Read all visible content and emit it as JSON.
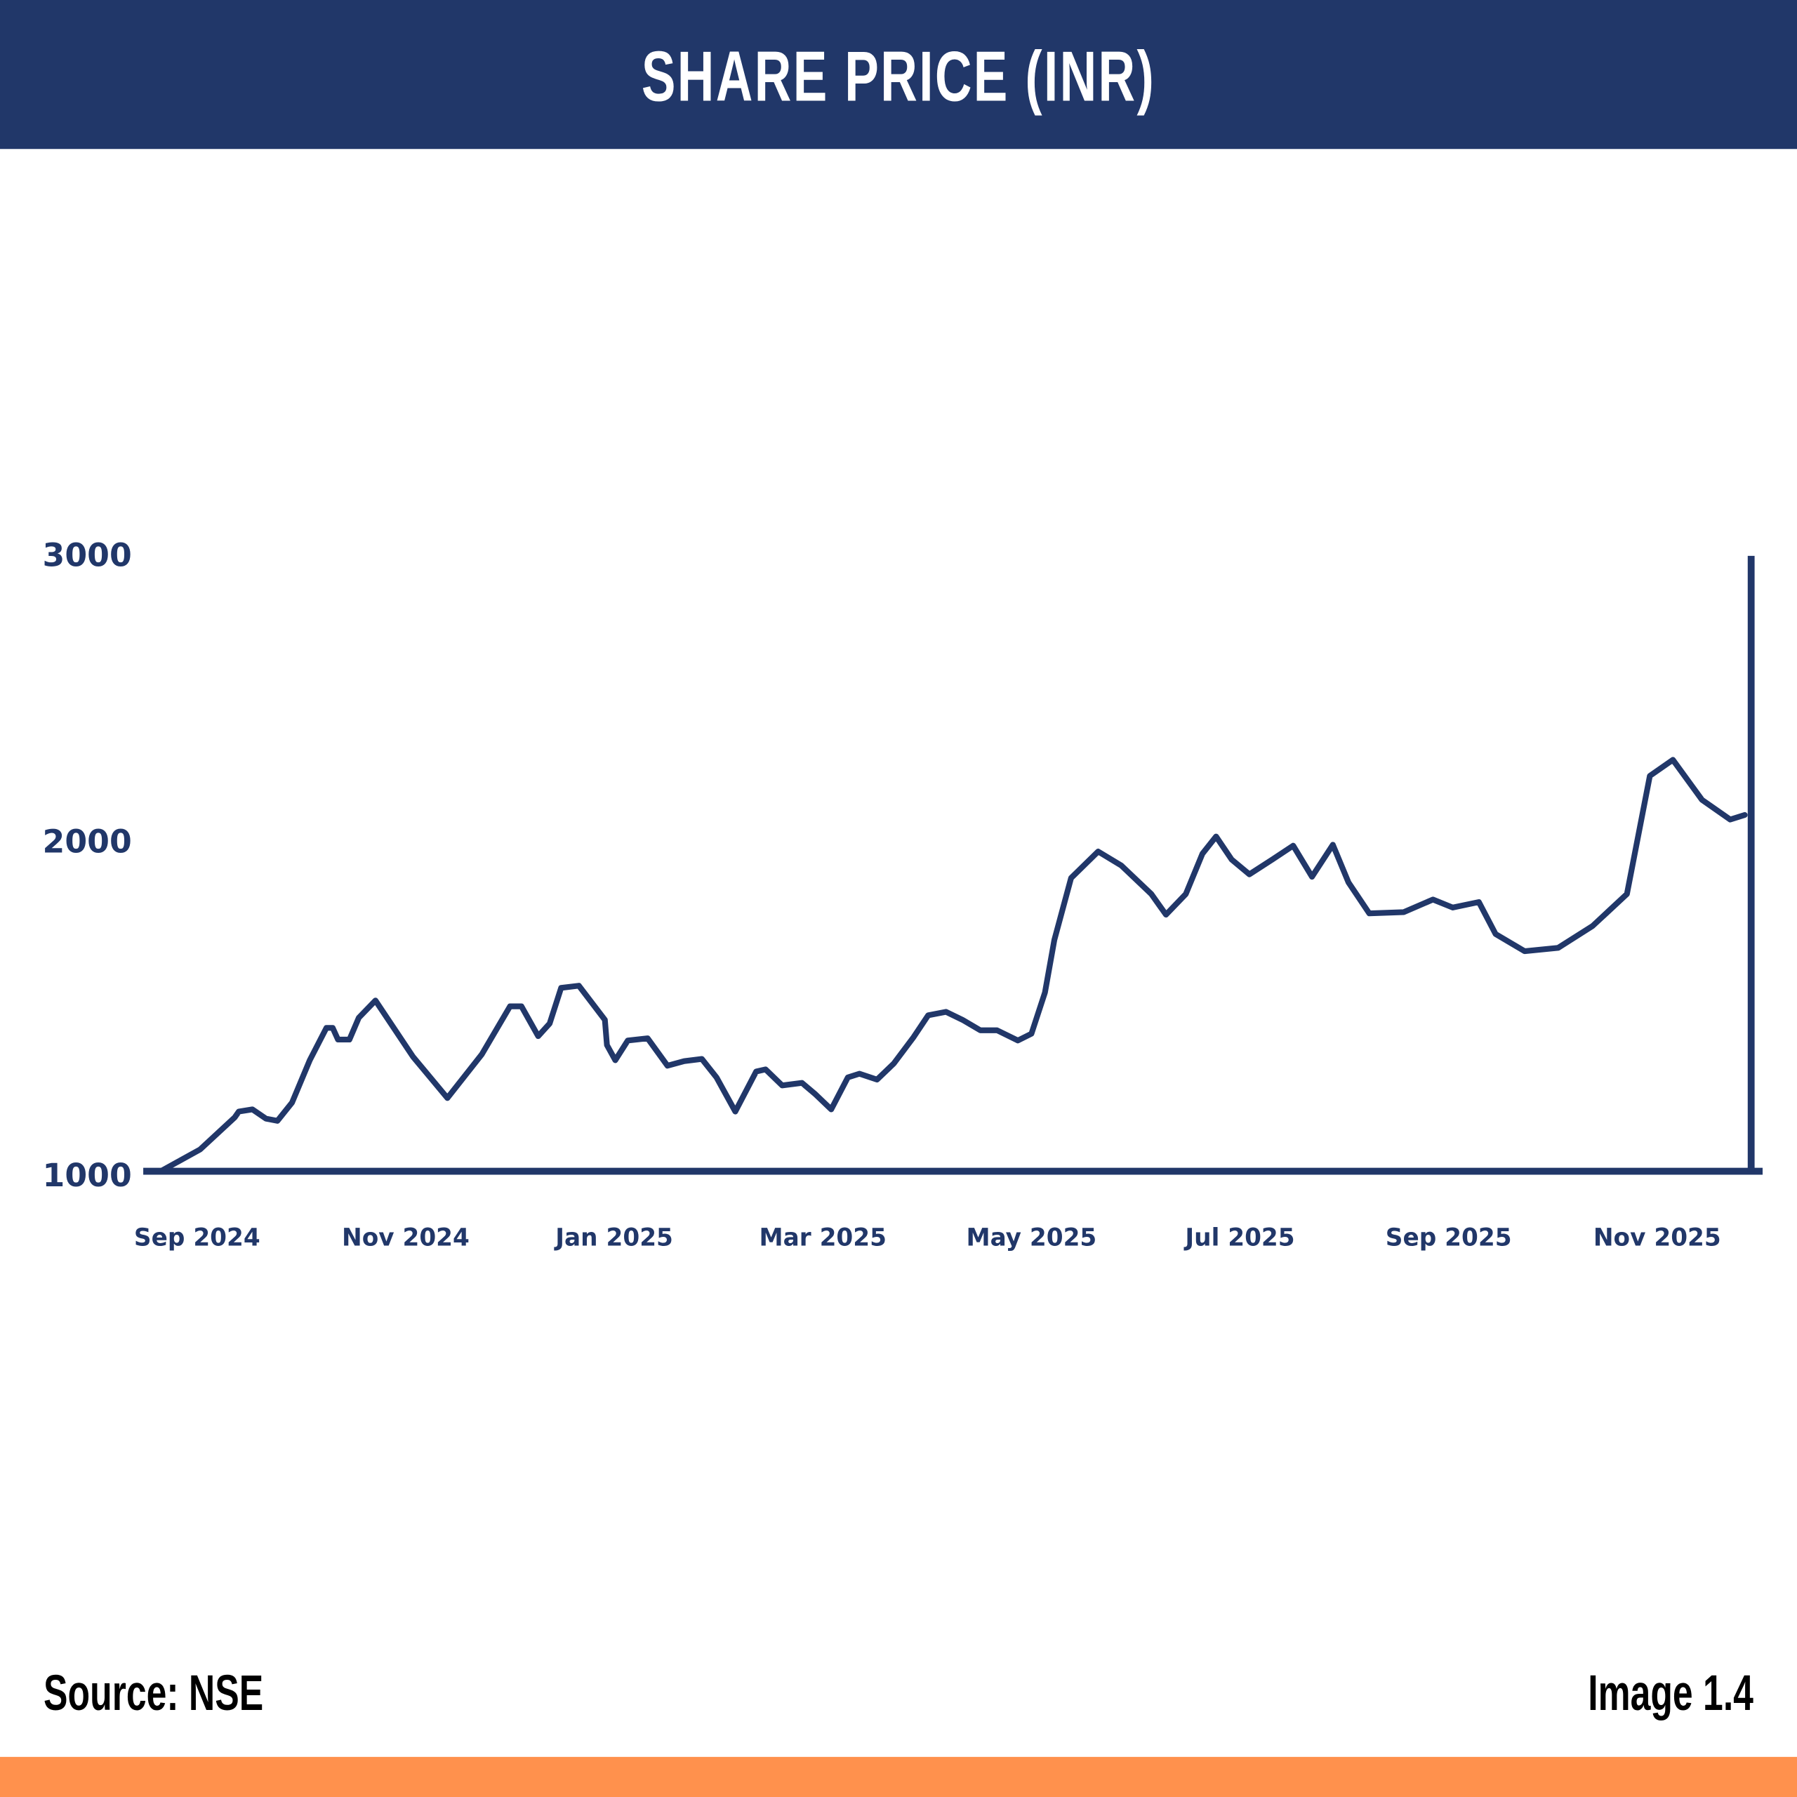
{
  "colors": {
    "header": "#213769",
    "line": "#213769",
    "accent_bar": "#FF914D",
    "footer_text": "#000000"
  },
  "chart_data": {
    "type": "line",
    "title": "SHARE PRICE (INR)",
    "xlabel": "",
    "ylabel": "",
    "x_unit": "months since Sep 2024",
    "ylim": [
      1000,
      3000
    ],
    "yticks": [
      "3000",
      "2000",
      "1000"
    ],
    "ytick_values": [
      3000,
      2000,
      1000
    ],
    "xticks": [
      "Sep 2024",
      "Nov 2024",
      "Jan 2025",
      "Mar 2025",
      "May 2025",
      "Jul 2025",
      "Sep 2025",
      "Nov 2025"
    ],
    "xtick_values": [
      0,
      2,
      4,
      6,
      8,
      10,
      12,
      14
    ],
    "grid": false,
    "series": [
      {
        "name": "Share Price",
        "x": [
          -0.35,
          0.03,
          0.36,
          0.4,
          0.53,
          0.66,
          0.77,
          0.91,
          1.08,
          1.24,
          1.3,
          1.35,
          1.46,
          1.55,
          1.71,
          2.07,
          2.4,
          2.73,
          3.0,
          3.11,
          3.27,
          3.38,
          3.49,
          3.66,
          3.91,
          3.93,
          4.01,
          4.13,
          4.32,
          4.51,
          4.67,
          4.84,
          4.98,
          5.16,
          5.36,
          5.45,
          5.61,
          5.8,
          5.93,
          6.08,
          6.24,
          6.35,
          6.52,
          6.68,
          6.87,
          7.01,
          7.18,
          7.34,
          7.51,
          7.67,
          7.87,
          8.0,
          8.13,
          8.22,
          8.38,
          8.64,
          8.86,
          9.15,
          9.29,
          9.48,
          9.64,
          9.77,
          9.92,
          10.09,
          10.31,
          10.51,
          10.69,
          10.89,
          11.04,
          11.24,
          11.57,
          11.85,
          12.04,
          12.29,
          12.45,
          12.73,
          13.05,
          13.38,
          13.71,
          13.93,
          14.15,
          14.43,
          14.7,
          14.84
        ],
        "values": [
          1000,
          1071,
          1175,
          1194,
          1201,
          1171,
          1164,
          1223,
          1361,
          1466,
          1466,
          1428,
          1428,
          1499,
          1555,
          1372,
          1238,
          1380,
          1536,
          1536,
          1439,
          1480,
          1596,
          1603,
          1492,
          1410,
          1361,
          1425,
          1432,
          1343,
          1358,
          1365,
          1305,
          1194,
          1324,
          1331,
          1279,
          1287,
          1250,
          1201,
          1305,
          1317,
          1298,
          1350,
          1436,
          1507,
          1518,
          1492,
          1458,
          1458,
          1425,
          1447,
          1581,
          1752,
          1953,
          2039,
          1994,
          1901,
          1834,
          1901,
          2032,
          2088,
          2013,
          1965,
          2013,
          2058,
          1957,
          2061,
          1939,
          1838,
          1842,
          1883,
          1857,
          1875,
          1771,
          1715,
          1726,
          1797,
          1901,
          2285,
          2337,
          2207,
          2143,
          2158
        ]
      }
    ]
  },
  "footer": {
    "source": "Source: NSE",
    "image_label": "Image 1.4"
  }
}
